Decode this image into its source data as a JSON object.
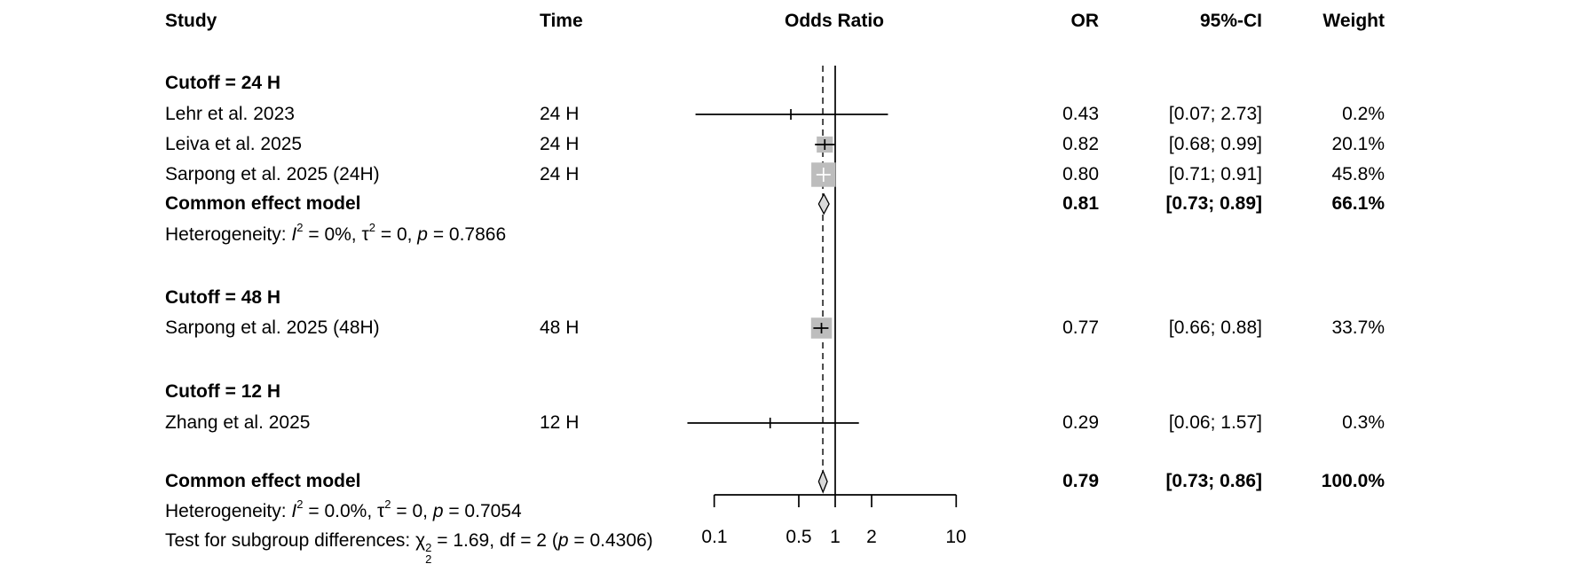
{
  "columns": {
    "study": "Study",
    "time": "Time",
    "plot": "Odds Ratio",
    "or": "OR",
    "ci": "95%-CI",
    "weight": "Weight"
  },
  "rows": {
    "g24_label": "Cutoff = 24 H",
    "lehr": {
      "study": "Lehr et al. 2023",
      "time": "24 H",
      "or": "0.43",
      "ci": "[0.07; 2.73]",
      "weight": "0.2%"
    },
    "leiva": {
      "study": "Leiva et al. 2025",
      "time": "24 H",
      "or": "0.82",
      "ci": "[0.68; 0.99]",
      "weight": "20.1%"
    },
    "sarpong24": {
      "study": "Sarpong et al. 2025 (24H)",
      "time": "24 H",
      "or": "0.80",
      "ci": "[0.71; 0.91]",
      "weight": "45.8%"
    },
    "common24": {
      "study": "Common effect model",
      "or": "0.81",
      "ci": "[0.73; 0.89]",
      "weight": "66.1%"
    },
    "het24": {
      "prefix": "Heterogeneity: ",
      "i_sym": "I",
      "i_sup": "2",
      "seg1": " = 0%, ",
      "tau_sym": "τ",
      "tau_sup": "2",
      "seg2": " = 0, ",
      "p_sym": "p",
      "seg3": " = 0.7866"
    },
    "g48_label": "Cutoff = 48 H",
    "sarpong48": {
      "study": "Sarpong et al. 2025 (48H)",
      "time": "48 H",
      "or": "0.77",
      "ci": "[0.66; 0.88]",
      "weight": "33.7%"
    },
    "g12_label": "Cutoff = 12 H",
    "zhang": {
      "study": "Zhang et al. 2025",
      "time": "12 H",
      "or": "0.29",
      "ci": "[0.06; 1.57]",
      "weight": "0.3%"
    },
    "commonAll": {
      "study": "Common effect model",
      "or": "0.79",
      "ci": "[0.73; 0.86]",
      "weight": "100.0%"
    },
    "hetAll": {
      "prefix": "Heterogeneity: ",
      "i_sym": "I",
      "i_sup": "2",
      "seg1": " = 0.0%, ",
      "tau_sym": "τ",
      "tau_sup": "2",
      "seg2": " = 0, ",
      "p_sym": "p",
      "seg3": " = 0.7054"
    },
    "test": {
      "prefix": "Test for subgroup differences: ",
      "chi_sym": "χ",
      "chi_sup": "2",
      "chi_sub": "2",
      "seg1": " = 1.69, df = 2 (",
      "p_sym": "p",
      "seg2": " = 0.4306)"
    }
  },
  "axis": {
    "labels": [
      "0.1",
      "0.5",
      "1",
      "2",
      "10"
    ]
  },
  "colors": {
    "square_fill": "#bdbdbd",
    "diamond_fill": "#d9d9d9",
    "line": "#000000"
  },
  "chart_data": {
    "type": "forest",
    "effect_measure": "Odds Ratio",
    "scale": "log10",
    "x_axis": {
      "ticks": [
        0.1,
        0.5,
        1,
        2,
        10
      ],
      "range": [
        0.1,
        10
      ]
    },
    "reference_line": 1,
    "pooled_line": 0.79,
    "legend_position": "none",
    "subgroups": [
      {
        "name": "Cutoff = 24 H",
        "studies": [
          {
            "study": "Lehr et al. 2023",
            "time": "24 H",
            "or": 0.43,
            "ci_low": 0.07,
            "ci_high": 2.73,
            "weight_pct": 0.2
          },
          {
            "study": "Leiva et al. 2025",
            "time": "24 H",
            "or": 0.82,
            "ci_low": 0.68,
            "ci_high": 0.99,
            "weight_pct": 20.1
          },
          {
            "study": "Sarpong et al. 2025 (24H)",
            "time": "24 H",
            "or": 0.8,
            "ci_low": 0.71,
            "ci_high": 0.91,
            "weight_pct": 45.8
          }
        ],
        "pooled": {
          "model": "Common effect model",
          "or": 0.81,
          "ci_low": 0.73,
          "ci_high": 0.89,
          "weight_pct": 66.1
        },
        "heterogeneity": {
          "I2": "0%",
          "tau2": "0",
          "p": "0.7866"
        }
      },
      {
        "name": "Cutoff = 48 H",
        "studies": [
          {
            "study": "Sarpong et al. 2025 (48H)",
            "time": "48 H",
            "or": 0.77,
            "ci_low": 0.66,
            "ci_high": 0.88,
            "weight_pct": 33.7
          }
        ]
      },
      {
        "name": "Cutoff = 12 H",
        "studies": [
          {
            "study": "Zhang et al. 2025",
            "time": "12 H",
            "or": 0.29,
            "ci_low": 0.06,
            "ci_high": 1.57,
            "weight_pct": 0.3
          }
        ]
      }
    ],
    "overall": {
      "model": "Common effect model",
      "or": 0.79,
      "ci_low": 0.73,
      "ci_high": 0.86,
      "weight_pct": 100.0,
      "heterogeneity": {
        "I2": "0.0%",
        "tau2": "0",
        "p": "0.7054"
      },
      "subgroup_test": {
        "chi2": 1.69,
        "df": 2,
        "p": 0.4306
      }
    }
  }
}
